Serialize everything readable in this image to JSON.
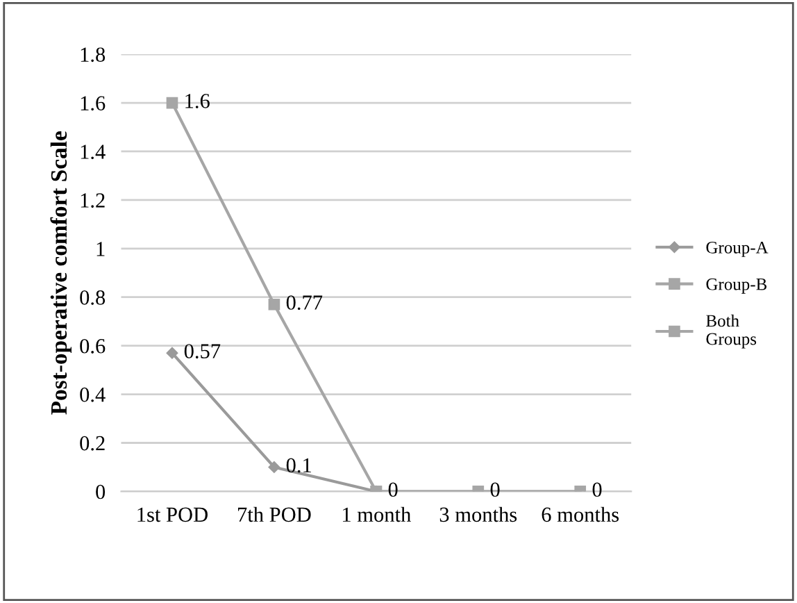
{
  "chart_data": {
    "type": "line",
    "ylabel": "Post-operative comfort Scale",
    "categories": [
      "1st POD",
      "7th POD",
      "1 month",
      "3 months",
      "6 months"
    ],
    "series": [
      {
        "name": "Group-A",
        "color": "#9a9a9a",
        "marker": "diamond",
        "values": [
          0.57,
          0.1,
          0,
          null,
          null
        ],
        "value_labels": [
          "0.57",
          "0.1",
          null,
          null,
          null
        ]
      },
      {
        "name": "Group-B",
        "color": "#a6a6a6",
        "marker": "square",
        "values": [
          1.6,
          0.77,
          0,
          null,
          null
        ],
        "value_labels": [
          "1.6",
          "0.77",
          null,
          null,
          null
        ]
      },
      {
        "name": "Both\nGroups",
        "color": "#a6a6a6",
        "marker": "square",
        "values": [
          null,
          null,
          0,
          0,
          0
        ],
        "value_labels": [
          null,
          null,
          "0",
          "0",
          "0"
        ]
      }
    ],
    "ylim": [
      0,
      1.8
    ],
    "yticks": [
      0,
      0.2,
      0.4,
      0.6,
      0.8,
      1,
      1.2,
      1.4,
      1.6,
      1.8
    ],
    "grid": "y",
    "legend": "right"
  }
}
